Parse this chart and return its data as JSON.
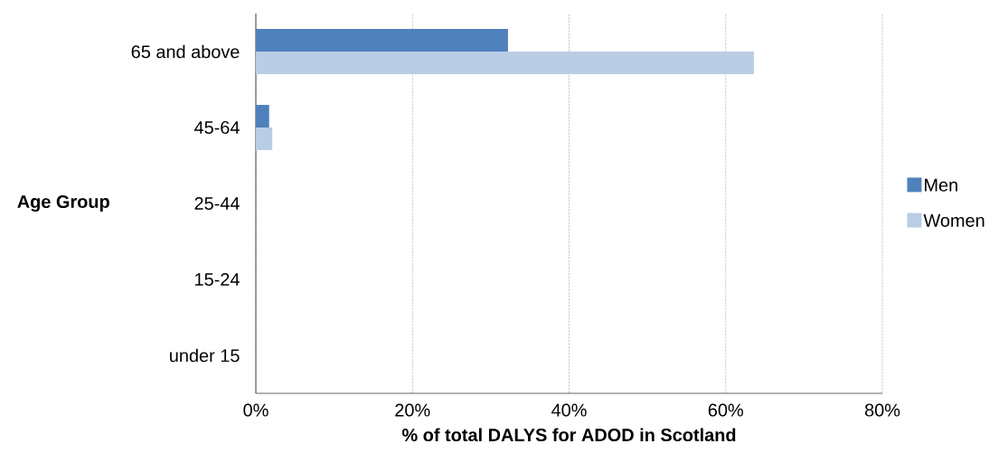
{
  "chart_data": {
    "type": "bar",
    "orientation": "horizontal",
    "xlabel": "% of total DALYS for ADOD in Scotland",
    "ylabel": "Age Group",
    "categories": [
      "65 and above",
      "45-64",
      "25-44",
      "15-24",
      "under 15"
    ],
    "series": [
      {
        "name": "Men",
        "color": "#4f81bd",
        "values": [
          32.2,
          1.7,
          0,
          0,
          0
        ]
      },
      {
        "name": "Women",
        "color": "#b9cde5",
        "values": [
          63.6,
          2.1,
          0,
          0,
          0
        ]
      }
    ],
    "xlim": [
      0,
      80
    ],
    "xticks": [
      {
        "value": 0,
        "label": "0%"
      },
      {
        "value": 20,
        "label": "20%"
      },
      {
        "value": 40,
        "label": "40%"
      },
      {
        "value": 60,
        "label": "60%"
      },
      {
        "value": 80,
        "label": "80%"
      }
    ],
    "grid": "x",
    "legend": "right"
  }
}
